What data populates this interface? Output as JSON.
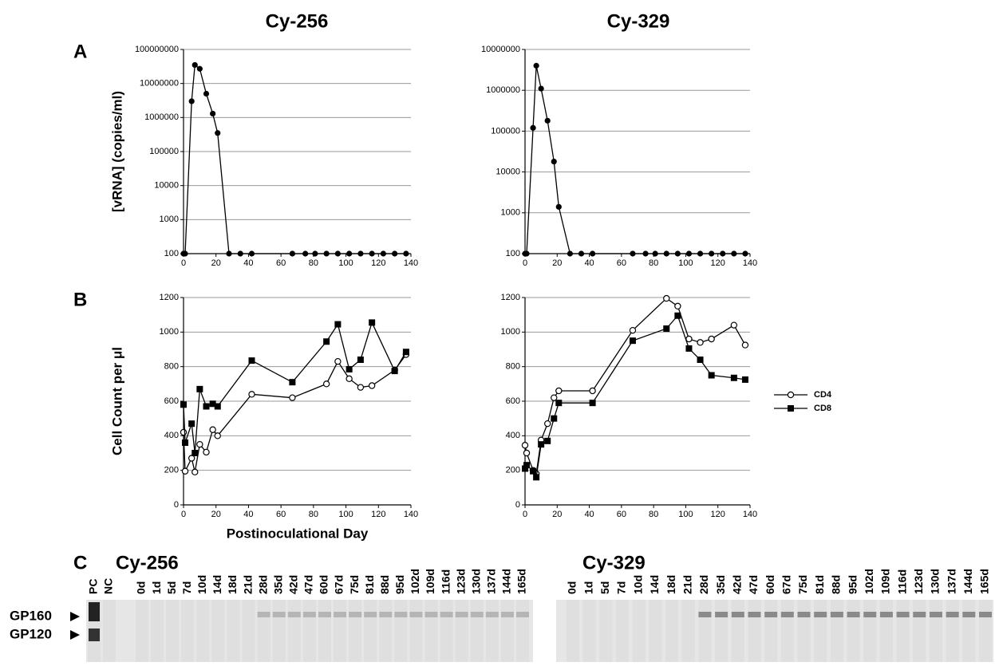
{
  "chart_data": [
    {
      "type": "line",
      "panel": "A",
      "title": "Cy-256",
      "ylabel": "[vRNA] (copies/ml)",
      "log_scale": true,
      "grid": true,
      "color": "#000000",
      "x": [
        0,
        1,
        5,
        7,
        10,
        14,
        18,
        21,
        28,
        35,
        42,
        67,
        75,
        81,
        88,
        95,
        102,
        109,
        116,
        123,
        130,
        137
      ],
      "values": [
        100,
        100,
        3000000,
        35000000,
        27000000,
        5000000,
        1300000,
        350000,
        100,
        100,
        100,
        100,
        100,
        100,
        100,
        100,
        100,
        100,
        100,
        100,
        100,
        100
      ],
      "xlim": [
        0,
        140
      ],
      "xticks": [
        0,
        20,
        40,
        60,
        80,
        100,
        120,
        140
      ],
      "ylim": [
        100,
        100000000
      ],
      "yticks": [
        100,
        1000,
        10000,
        100000,
        1000000,
        10000000,
        100000000
      ]
    },
    {
      "type": "line",
      "title": "Cy-329",
      "log_scale": true,
      "grid": true,
      "color": "#000000",
      "x": [
        0,
        1,
        5,
        7,
        10,
        14,
        18,
        21,
        28,
        35,
        42,
        67,
        75,
        81,
        88,
        95,
        102,
        109,
        116,
        123,
        130,
        137
      ],
      "values": [
        100,
        100,
        120000,
        4000000,
        1100000,
        180000,
        18000,
        1400,
        100,
        100,
        100,
        100,
        100,
        100,
        100,
        100,
        100,
        100,
        100,
        100,
        100,
        100
      ],
      "xlim": [
        0,
        140
      ],
      "xticks": [
        0,
        20,
        40,
        60,
        80,
        100,
        120,
        140
      ],
      "ylim": [
        100,
        10000000
      ],
      "yticks": [
        100,
        1000,
        10000,
        100000,
        1000000,
        10000000
      ]
    },
    {
      "type": "line",
      "panel": "B",
      "ylabel": "Cell Count per μl",
      "xlabel": "Postinoculational Day",
      "grid": true,
      "x": [
        0,
        1,
        5,
        7,
        10,
        14,
        18,
        21,
        42,
        67,
        88,
        95,
        102,
        109,
        116,
        130,
        137
      ],
      "series": [
        {
          "name": "CD4",
          "color": "#000000",
          "marker": "circle-open",
          "values": [
            420,
            195,
            270,
            190,
            350,
            305,
            435,
            400,
            640,
            620,
            700,
            830,
            730,
            680,
            690,
            780,
            870
          ]
        },
        {
          "name": "CD8",
          "color": "#000000",
          "marker": "square",
          "values": [
            580,
            360,
            470,
            300,
            670,
            570,
            585,
            570,
            835,
            710,
            945,
            1045,
            785,
            840,
            1055,
            775,
            885
          ]
        }
      ],
      "xlim": [
        0,
        140
      ],
      "xticks": [
        0,
        20,
        40,
        60,
        80,
        100,
        120,
        140
      ],
      "ylim": [
        0,
        1200
      ],
      "yticks": [
        0,
        200,
        400,
        600,
        800,
        1000,
        1200
      ]
    },
    {
      "type": "line",
      "grid": true,
      "legend": "right",
      "x": [
        0,
        1,
        5,
        7,
        10,
        14,
        18,
        21,
        42,
        67,
        88,
        95,
        102,
        109,
        116,
        130,
        137
      ],
      "series": [
        {
          "name": "CD4",
          "color": "#000000",
          "marker": "circle-open",
          "values": [
            345,
            300,
            200,
            180,
            375,
            470,
            620,
            660,
            660,
            1010,
            1195,
            1150,
            960,
            940,
            960,
            1040,
            925
          ]
        },
        {
          "name": "CD8",
          "color": "#000000",
          "marker": "square",
          "values": [
            210,
            230,
            195,
            160,
            350,
            370,
            500,
            590,
            590,
            950,
            1020,
            1095,
            905,
            840,
            750,
            735,
            725
          ]
        }
      ],
      "xlim": [
        0,
        140
      ],
      "xticks": [
        0,
        20,
        40,
        60,
        80,
        100,
        120,
        140
      ],
      "ylim": [
        0,
        1200
      ],
      "yticks": [
        0,
        200,
        400,
        600,
        800,
        1000,
        1200
      ]
    }
  ],
  "blots": {
    "label": "C",
    "markers": [
      "GP160",
      "GP120"
    ],
    "panels": [
      {
        "title": "Cy-256",
        "lanes": [
          "PC",
          "NC",
          "0d",
          "1d",
          "5d",
          "7d",
          "10d",
          "14d",
          "18d",
          "21d",
          "28d",
          "35d",
          "42d",
          "47d",
          "60d",
          "67d",
          "75d",
          "81d",
          "88d",
          "95d",
          "102d",
          "109d",
          "116d",
          "123d",
          "130d",
          "137d",
          "144d",
          "165d"
        ]
      },
      {
        "title": "Cy-329",
        "lanes": [
          "0d",
          "1d",
          "5d",
          "7d",
          "10d",
          "14d",
          "18d",
          "21d",
          "28d",
          "35d",
          "42d",
          "47d",
          "60d",
          "67d",
          "75d",
          "81d",
          "88d",
          "95d",
          "102d",
          "109d",
          "116d",
          "123d",
          "130d",
          "137d",
          "144d",
          "165d"
        ]
      }
    ]
  }
}
